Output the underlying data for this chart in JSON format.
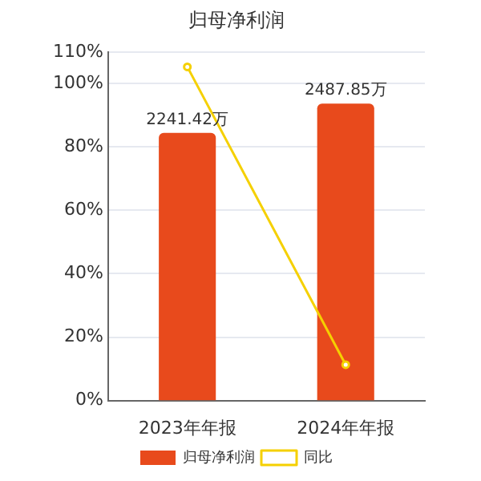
{
  "chart_data": {
    "type": "bar",
    "title": "归母净利润",
    "categories": [
      "2023年年报",
      "2024年年报"
    ],
    "series": [
      {
        "name": "归母净利润",
        "color": "#e84a1c",
        "axis": "y2",
        "values": [
          2241.42,
          2487.85
        ],
        "value_labels": [
          "2241.42万",
          "2487.85万"
        ]
      },
      {
        "name": "同比",
        "type": "line",
        "color": "#f5d000",
        "values": [
          105.3,
          11.3
        ],
        "marker": "circle"
      }
    ],
    "ylim": [
      0,
      110
    ],
    "yticks": [
      {
        "value": 0,
        "label": "0%"
      },
      {
        "value": 20,
        "label": "20%"
      },
      {
        "value": 40,
        "label": "40%"
      },
      {
        "value": 60,
        "label": "60%"
      },
      {
        "value": 80,
        "label": "80%"
      },
      {
        "value": 100,
        "label": "100%"
      },
      {
        "value": 110,
        "label": "110%"
      }
    ],
    "y2lim": [
      0,
      2920
    ],
    "grid": "y",
    "legend": "bottom"
  }
}
